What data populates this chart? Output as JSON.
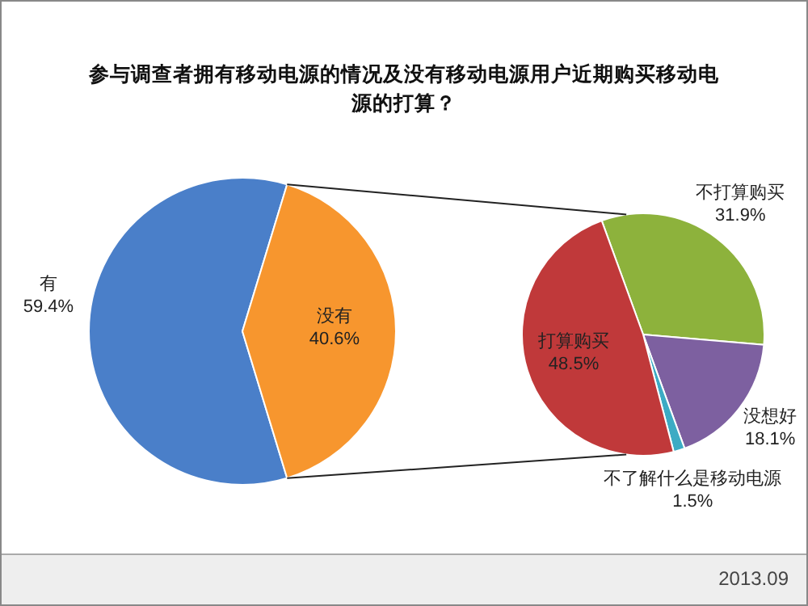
{
  "chart_data": [
    {
      "type": "pie",
      "title": "参与调查者拥有移动电源的情况及没有移动电源用户近期购买移动电源的打算？",
      "categories": [
        "有",
        "没有"
      ],
      "values": [
        59.4,
        40.6
      ],
      "colors": [
        "#4a7fc9",
        "#f7962e"
      ],
      "value_labels": [
        "59.4%",
        "40.6%"
      ]
    },
    {
      "type": "pie",
      "categories": [
        "不打算购买",
        "没想好",
        "不了解什么是移动电源",
        "打算购买"
      ],
      "values": [
        31.9,
        18.1,
        1.5,
        48.5
      ],
      "colors": [
        "#8db23c",
        "#7d60a0",
        "#3cabc4",
        "#c0393a"
      ],
      "value_labels": [
        "31.9%",
        "18.1%",
        "1.5%",
        "48.5%"
      ],
      "annotations": [
        "2013.09"
      ]
    }
  ]
}
